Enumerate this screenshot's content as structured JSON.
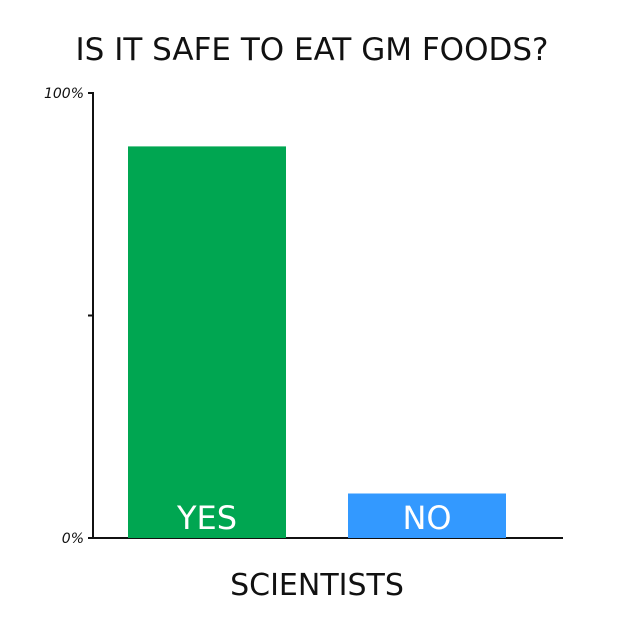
{
  "chart_data": {
    "type": "bar",
    "title": "IS IT SAFE TO EAT GM FOODS?",
    "xlabel": "SCIENTISTS",
    "ylabel": "",
    "ylim": [
      0,
      100
    ],
    "y_ticks": [
      {
        "value": 100,
        "label": "100%"
      },
      {
        "value": 50,
        "label": ""
      },
      {
        "value": 0,
        "label": "0%"
      }
    ],
    "categories": [
      "YES",
      "NO"
    ],
    "values": [
      88,
      10
    ],
    "colors": [
      "#00a651",
      "#3399ff"
    ],
    "label_color": "#ffffff",
    "grid": false,
    "legend": "none"
  }
}
